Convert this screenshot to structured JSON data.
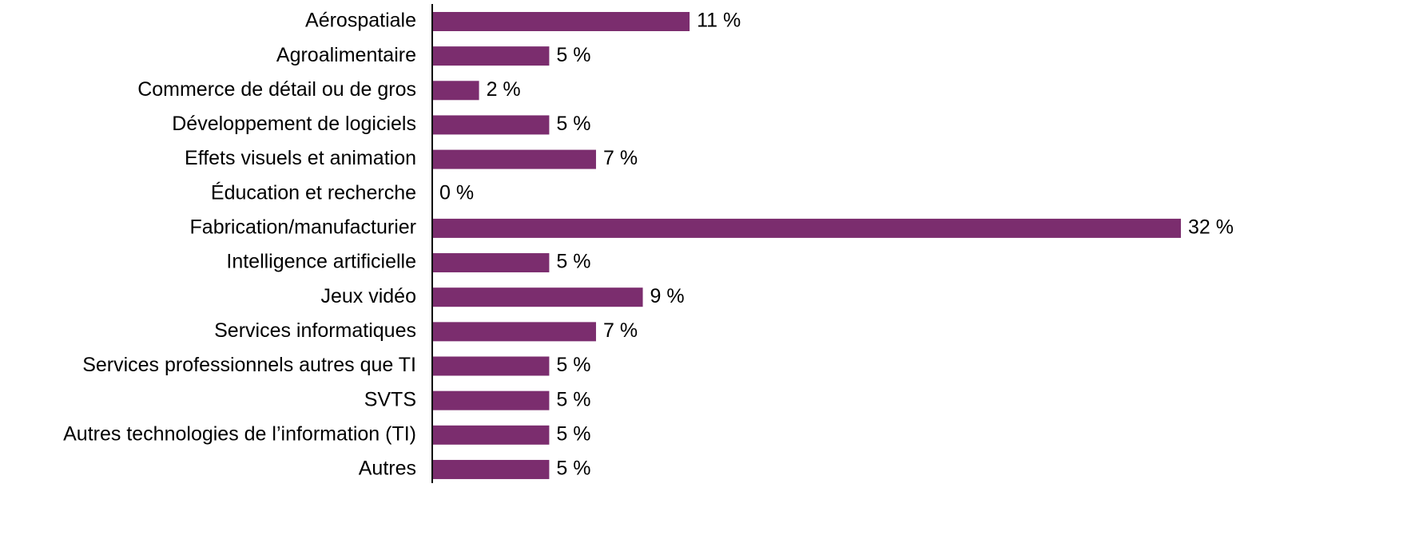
{
  "chart_data": {
    "type": "bar",
    "orientation": "horizontal",
    "categories": [
      "Aérospatiale",
      "Agroalimentaire",
      "Commerce de détail ou de gros",
      "Développement de logiciels",
      "Effets visuels et animation",
      "Éducation et recherche",
      "Fabrication/manufacturier",
      "Intelligence artificielle",
      "Jeux vidéo",
      "Services informatiques",
      "Services professionnels autres que TI",
      "SVTS",
      "Autres technologies de l’information (TI)",
      "Autres"
    ],
    "values": [
      11,
      5,
      2,
      5,
      7,
      0,
      32,
      5,
      9,
      7,
      5,
      5,
      5,
      5
    ],
    "value_labels": [
      "11 %",
      "5 %",
      "2 %",
      "5 %",
      "7 %",
      "0 %",
      "32 %",
      "5 %",
      "9 %",
      "7 %",
      "5 %",
      "5 %",
      "5 %",
      "5 %"
    ],
    "color": "#7b2d6e",
    "xlim": [
      0,
      32
    ]
  }
}
